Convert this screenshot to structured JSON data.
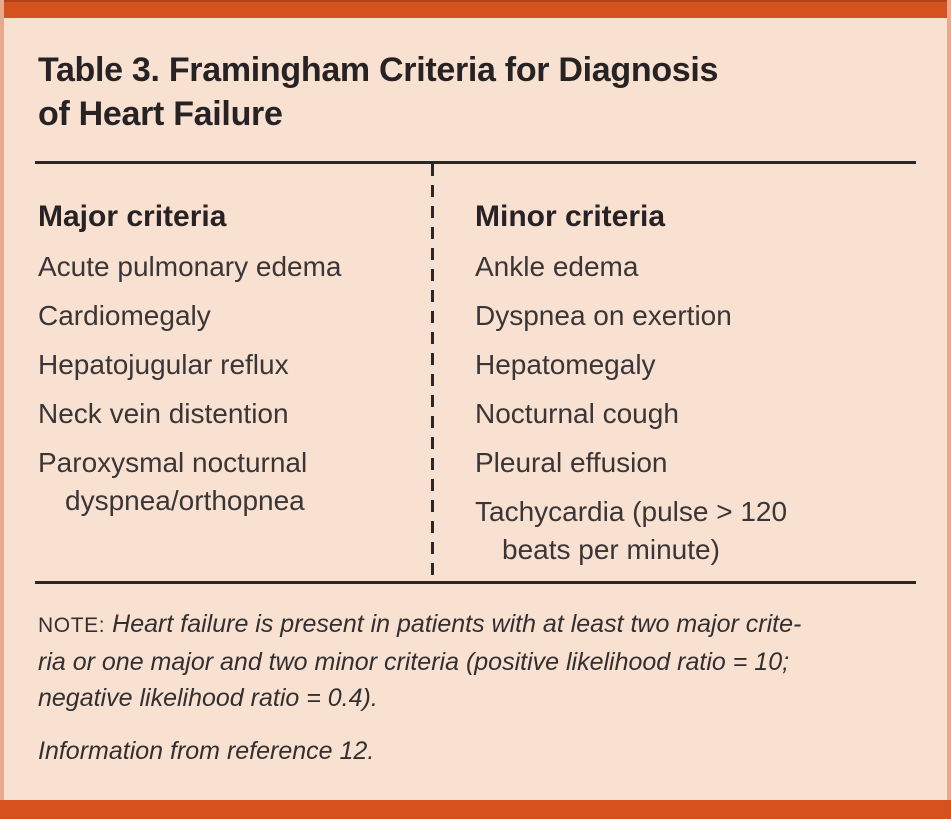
{
  "colors": {
    "accent": "#d5521e",
    "background": "#f9e1d2",
    "side_border": "#eaa98e",
    "rule": "#2b2627",
    "title_text": "#272224",
    "body_text": "#3a3537"
  },
  "title": {
    "line1": "Table 3. Framingham Criteria for Diagnosis",
    "line2": "of Heart Failure"
  },
  "table": {
    "major": {
      "header": "Major criteria",
      "rows": [
        "Acute pulmonary edema",
        "Cardiomegaly",
        "Hepatojugular reflux",
        "Neck vein distention",
        "Paroxysmal nocturnal"
      ],
      "continuation": "dyspnea/orthopnea"
    },
    "minor": {
      "header": "Minor criteria",
      "rows": [
        "Ankle edema",
        "Dyspnea on exertion",
        "Hepatomegaly",
        "Nocturnal cough",
        "Pleural effusion",
        "Tachycardia (pulse > 120"
      ],
      "continuation": "beats per minute)"
    }
  },
  "note": {
    "label": "NOTE:",
    "lines": [
      "Heart failure is present in patients with at least two major crite-",
      "ria or one major and two minor criteria (positive likelihood ratio = 10;",
      "negative likelihood ratio = 0.4)."
    ]
  },
  "source": "Information from reference 12."
}
